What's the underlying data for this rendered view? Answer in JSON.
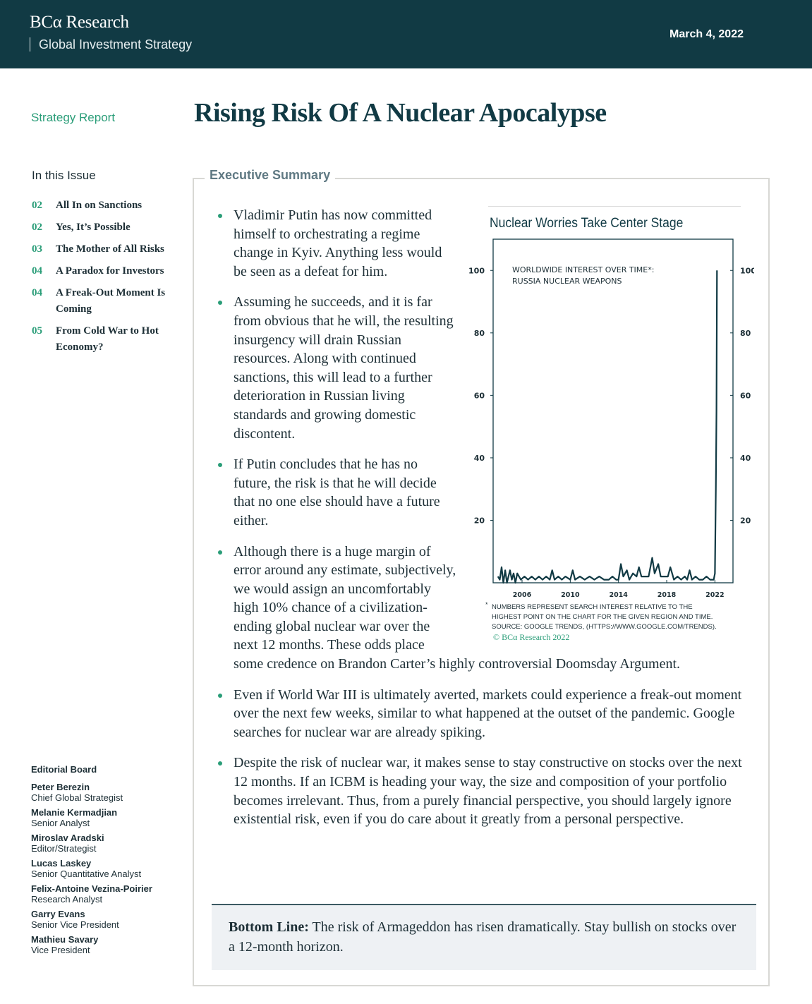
{
  "header": {
    "logo": "BCα Research",
    "series": "Global Investment Strategy",
    "date": "March 4, 2022",
    "bg": "#113a44"
  },
  "kicker": "Strategy Report",
  "title": "Rising Risk Of A Nuclear Apocalypse",
  "toc": {
    "heading": "In this Issue",
    "items": [
      {
        "page": "02",
        "label": "All In on Sanctions"
      },
      {
        "page": "02",
        "label": "Yes, It’s Possible"
      },
      {
        "page": "03",
        "label": "The Mother of All Risks"
      },
      {
        "page": "04",
        "label": "A Paradox for Investors"
      },
      {
        "page": "04",
        "label": "A Freak-Out Moment Is Coming"
      },
      {
        "page": "05",
        "label": "From Cold War to Hot Economy?"
      }
    ]
  },
  "board": {
    "heading": "Editorial Board",
    "members": [
      {
        "name": "Peter Berezin",
        "role": "Chief Global Strategist"
      },
      {
        "name": "Melanie Kermadjian",
        "role": "Senior Analyst"
      },
      {
        "name": "Miroslav Aradski",
        "role": "Editor/Strategist"
      },
      {
        "name": "Lucas Laskey",
        "role": "Senior Quantitative Analyst"
      },
      {
        "name": "Felix-Antoine Vezina-Poirier",
        "role": "Research Analyst"
      },
      {
        "name": "Garry Evans",
        "role": "Senior Vice President"
      },
      {
        "name": "Mathieu Savary",
        "role": "Vice President"
      }
    ]
  },
  "summary": {
    "label": "Executive Summary",
    "bullets": [
      "Vladimir Putin has now committed himself to orchestrating a regime change in Kyiv. Anything less would be seen as a defeat for him.",
      "Assuming he succeeds, and it is far from obvious that he will, the resulting insurgency will drain Russian resources. Along with continued sanctions, this will lead to a further deterioration in Russian living standards and growing domestic discontent.",
      "If Putin concludes that he has no future, the risk is that he will decide that no one else should have a future either.",
      "Although there is a huge margin of error around any estimate, subjectively, we would assign an uncomfortably high 10% chance of a civilization-ending global nuclear war over the next 12 months. These odds place some credence on Brandon Carter’s highly controversial Doomsday Argument.",
      "Even if World War III is ultimately averted, markets could experience a freak-out moment over the next few weeks, similar to what happened at the outset of the pandemic. Google searches for nuclear war are already spiking.",
      "Despite the risk of nuclear war, it makes sense to stay constructive on stocks over the next 12 months. If an ICBM is heading your way, the size and composition of your portfolio becomes irrelevant. Thus, from a purely financial perspective, you should largely ignore existential risk, even if you do care about it greatly from a personal perspective."
    ],
    "bottom_label": "Bottom Line:",
    "bottom_text": " The risk of Armageddon has risen dramatically. Stay bullish on stocks over a 12-month horizon."
  },
  "chart_data": {
    "type": "line",
    "title": "Nuclear Worries Take Center Stage",
    "annotation": [
      "WORLDWIDE INTEREST OVER TIME*:",
      "RUSSIA NUCLEAR WEAPONS"
    ],
    "footnote": [
      "NUMBERS REPRESENT SEARCH INTEREST RELATIVE TO THE",
      "HIGHEST POINT ON THE CHART FOR THE GIVEN REGION AND TIME.",
      "SOURCE: GOOGLE TRENDS, (HTTPS://WWW.GOOGLE.COM/TRENDS)."
    ],
    "footnote_marker": "*",
    "copyright": "© BCα Research 2022",
    "x_ticks": [
      "2006",
      "2010",
      "2014",
      "2018",
      "2022"
    ],
    "y_ticks": [
      20,
      40,
      60,
      80,
      100
    ],
    "xlim": [
      2003.6,
      2023.5
    ],
    "ylim": [
      0,
      110
    ],
    "grid": false,
    "axes": "left and right",
    "color": "#113a44",
    "series": [
      {
        "x": [
          2004.0,
          2004.15,
          2004.3,
          2004.45,
          2004.6,
          2004.75,
          2005.0,
          2005.15,
          2005.3,
          2005.45,
          2005.6,
          2005.9,
          2006.2,
          2006.5,
          2006.8,
          2007.1,
          2007.4,
          2007.7,
          2008.0,
          2008.3,
          2008.5,
          2008.7,
          2009.0,
          2009.3,
          2009.6,
          2010.0,
          2010.2,
          2010.4,
          2010.8,
          2011.2,
          2011.6,
          2012.0,
          2012.4,
          2012.8,
          2013.2,
          2013.5,
          2013.8,
          2014.0,
          2014.2,
          2014.4,
          2014.7,
          2014.9,
          2015.2,
          2015.5,
          2015.7,
          2015.9,
          2016.2,
          2016.5,
          2016.8,
          2017.0,
          2017.3,
          2017.5,
          2017.8,
          2018.1,
          2018.3,
          2018.6,
          2018.9,
          2019.2,
          2019.5,
          2019.7,
          2019.9,
          2020.1,
          2020.4,
          2020.7,
          2021.0,
          2021.3,
          2021.6,
          2021.9,
          2022.0,
          2022.08,
          2022.13,
          2022.17
        ],
        "y": [
          2,
          1,
          5,
          0,
          4,
          0,
          4,
          1,
          3,
          0,
          3,
          1,
          2,
          1,
          2,
          1,
          2,
          1,
          2,
          1,
          4,
          1,
          2,
          1,
          2,
          1,
          4,
          1,
          2,
          1,
          2,
          1,
          2,
          1,
          1,
          2,
          1,
          1,
          6,
          2,
          4,
          1,
          3,
          2,
          5,
          2,
          2,
          2,
          8,
          3,
          6,
          2,
          2,
          2,
          5,
          1,
          2,
          1,
          2,
          1,
          4,
          1,
          2,
          1,
          1,
          2,
          1,
          1,
          3,
          30,
          55,
          100
        ]
      }
    ]
  }
}
